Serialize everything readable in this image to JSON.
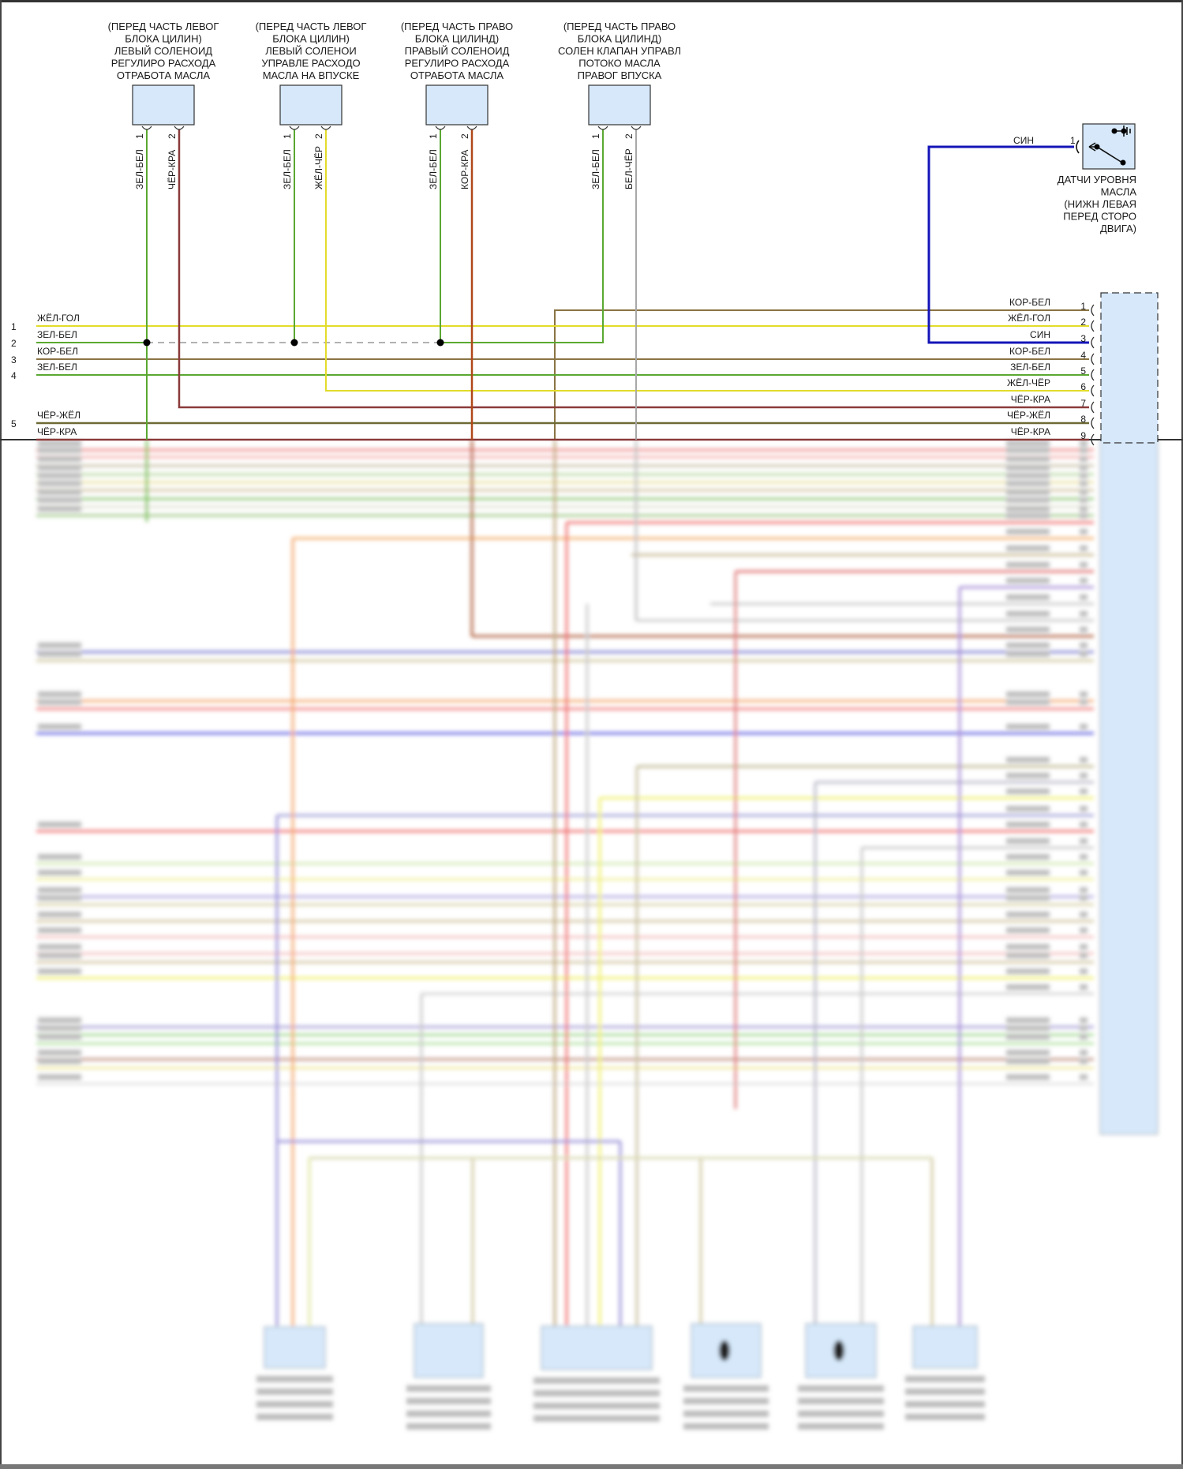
{
  "components": [
    {
      "lines": [
        "(ПЕРЕД ЧАСТЬ ЛЕВОГ",
        "БЛОКА ЦИЛИН)",
        "ЛЕВЫЙ СОЛЕНОИД",
        "РЕГУЛИРО РАСХОДА",
        "ОТРАБОТА МАСЛА"
      ],
      "pins": [
        {
          "num": "1",
          "wire": "ЗЕЛ-БЕЛ"
        },
        {
          "num": "2",
          "wire": "ЧЁР-КРА"
        }
      ]
    },
    {
      "lines": [
        "(ПЕРЕД ЧАСТЬ ЛЕВОГ",
        "БЛОКА ЦИЛИН)",
        "ЛЕВЫЙ СОЛЕНОИ",
        "УПРАВЛЕ РАСХОДО",
        "МАСЛА НА ВПУСКЕ"
      ],
      "pins": [
        {
          "num": "1",
          "wire": "ЗЕЛ-БЕЛ"
        },
        {
          "num": "2",
          "wire": "ЖЁЛ-ЧЁР"
        }
      ]
    },
    {
      "lines": [
        "(ПЕРЕД ЧАСТЬ ПРАВО",
        "БЛОКА ЦИЛИНД)",
        "ПРАВЫЙ СОЛЕНОИД",
        "РЕГУЛИРО РАСХОДА",
        "ОТРАБОТА МАСЛА"
      ],
      "pins": [
        {
          "num": "1",
          "wire": "ЗЕЛ-БЕЛ"
        },
        {
          "num": "2",
          "wire": "КОР-КРА"
        }
      ]
    },
    {
      "lines": [
        "(ПЕРЕД ЧАСТЬ ПРАВО",
        "БЛОКА ЦИЛИНД)",
        "СОЛЕН КЛАПАН УПРАВЛ",
        "ПОТОКО МАСЛА",
        "ПРАВОГ ВПУСКА"
      ],
      "pins": [
        {
          "num": "1",
          "wire": "ЗЕЛ-БЕЛ"
        },
        {
          "num": "2",
          "wire": "БЕЛ-ЧЁР"
        }
      ]
    }
  ],
  "sensor": {
    "wire": "СИН",
    "pin": "1",
    "icon": "switch-to-ground-icon",
    "lines": [
      "ДАТЧИ УРОВНЯ",
      "МАСЛА",
      "(НИЖН ЛЕВАЯ",
      "ПЕРЕД СТОРО",
      "ДВИГА)"
    ]
  },
  "left_rows": [
    {
      "num": "1",
      "wire": "ЖЁЛ-ГОЛ"
    },
    {
      "num": "2",
      "wire": "ЗЕЛ-БЕЛ"
    },
    {
      "num": "3",
      "wire": "КОР-БЕЛ"
    },
    {
      "num": "4",
      "wire": "ЗЕЛ-БЕЛ"
    },
    {
      "num": "5",
      "wire": "ЧЁР-ЖЁЛ"
    },
    {
      "num": "",
      "wire": "ЧЁР-КРА"
    }
  ],
  "connector_pins": [
    {
      "num": "1",
      "wire": "КОР-БЕЛ"
    },
    {
      "num": "2",
      "wire": "ЖЁЛ-ГОЛ"
    },
    {
      "num": "3",
      "wire": "СИН"
    },
    {
      "num": "4",
      "wire": "КОР-БЕЛ"
    },
    {
      "num": "5",
      "wire": "ЗЕЛ-БЕЛ"
    },
    {
      "num": "6",
      "wire": "ЖЁЛ-ЧЁР"
    },
    {
      "num": "7",
      "wire": "ЧЁР-КРА"
    },
    {
      "num": "8",
      "wire": "ЧЁР-ЖЁЛ"
    },
    {
      "num": "9",
      "wire": "ЧЁР-КРА"
    }
  ],
  "colors": {
    "green": "#5aa832",
    "black_red": "#8b3a3a",
    "yellow": "#e2dc2a",
    "brown_red": "#b0481a",
    "gray": "#a8a8a8",
    "blue": "#1414b8",
    "brown_white": "#8a7444",
    "black_yellow": "#6e6a36",
    "component_fill": "#d6e8fa"
  }
}
